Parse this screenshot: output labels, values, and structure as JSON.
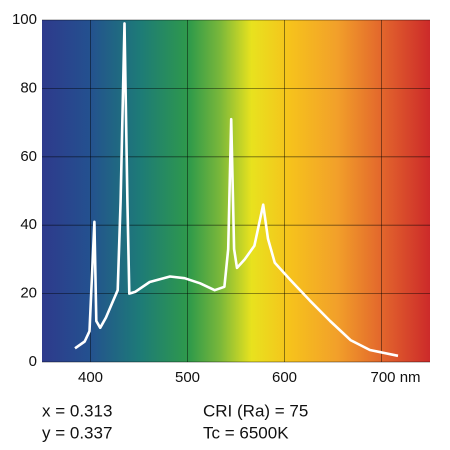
{
  "chart_data": {
    "type": "line",
    "x": [
      384,
      394,
      399,
      404,
      406,
      410,
      416,
      422,
      428,
      431,
      435,
      438,
      440,
      446,
      461,
      482,
      497,
      513,
      528,
      538,
      542,
      545,
      548,
      551,
      559,
      569,
      578,
      583,
      590,
      606,
      626,
      647,
      668,
      688,
      717
    ],
    "values": [
      4,
      6,
      9,
      41,
      12,
      10,
      13,
      17,
      21,
      47,
      99,
      47,
      20,
      20.5,
      23.4,
      25,
      24.5,
      23,
      21,
      22,
      33,
      71,
      33,
      27.5,
      30,
      34,
      46,
      36,
      29,
      24,
      18,
      12,
      6.4,
      3.5,
      1.8
    ],
    "color": "#ffffff",
    "xlim": [
      350,
      750
    ],
    "ylim": [
      0,
      100
    ],
    "xticks": [
      400,
      500,
      600,
      {
        "value": 700,
        "label": "700 nm"
      }
    ],
    "yticks": [
      0,
      20,
      40,
      60,
      80,
      100
    ],
    "grid": true,
    "annotations": [
      "x = 0.313",
      "y = 0.337",
      "CRI (Ra) = 75",
      "Tc = 6500K"
    ]
  }
}
